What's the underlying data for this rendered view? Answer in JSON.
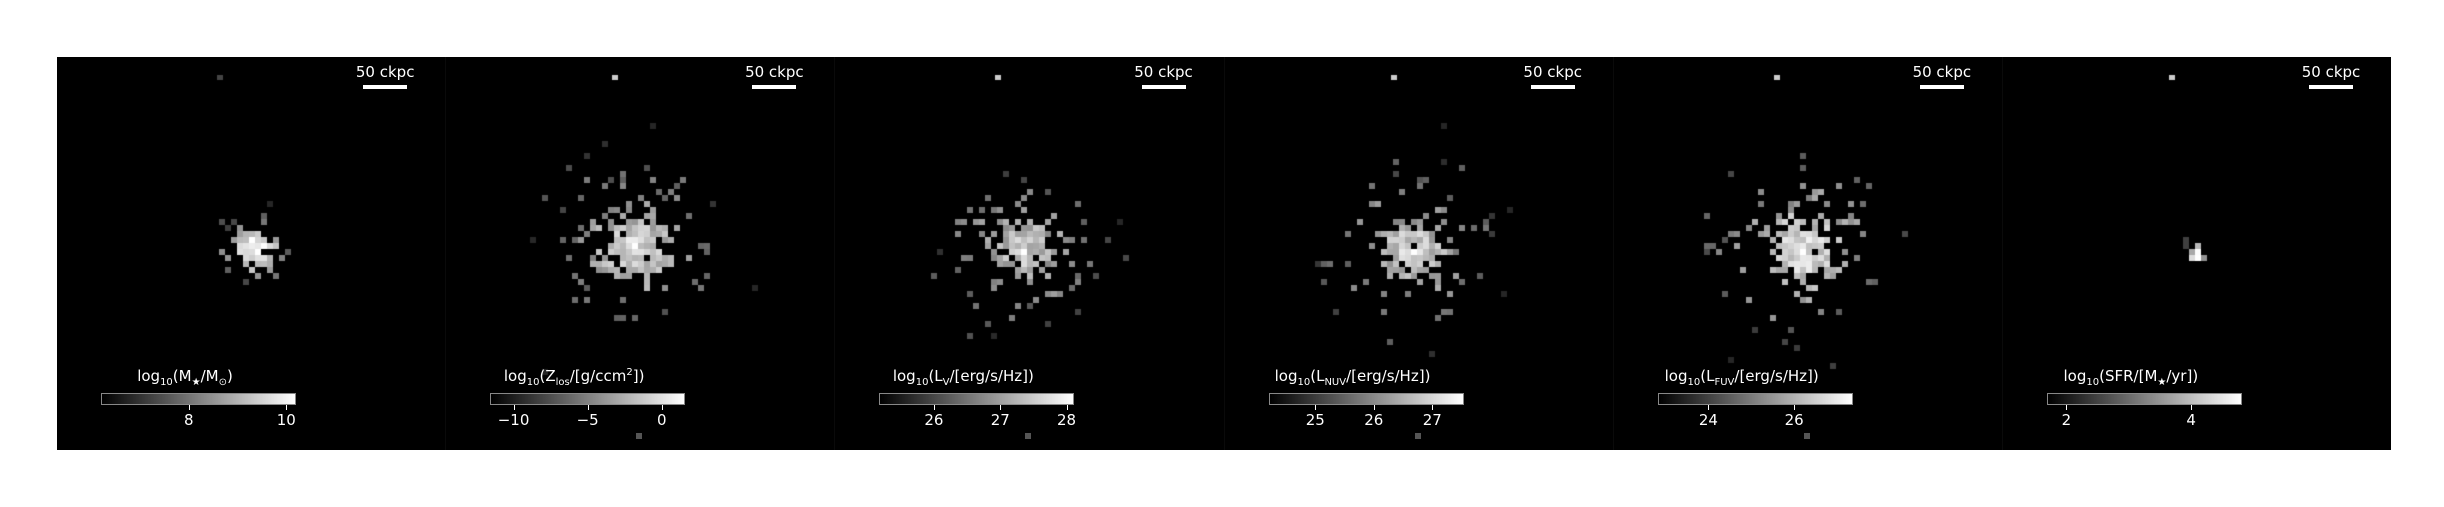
{
  "panels": [
    {
      "scalebar": "50 ckpc",
      "colorbar_label": {
        "pre": "log",
        "sub": "10",
        "mid": "(M",
        "sub2": "★",
        "post": "/M",
        "sub3": "⊙",
        "end": ")"
      },
      "ticks": [
        {
          "value": "8",
          "frac": 0.45
        },
        {
          "value": "10",
          "frac": 0.95
        }
      ]
    },
    {
      "scalebar": "50 ckpc",
      "colorbar_label": {
        "pre": "log",
        "sub": "10",
        "mid": "(Z",
        "sub2": "los",
        "post": "/[g/ccm",
        "sup": "2",
        "end": "])"
      },
      "ticks": [
        {
          "value": "−10",
          "frac": 0.12
        },
        {
          "value": "−5",
          "frac": 0.5
        },
        {
          "value": "0",
          "frac": 0.88
        }
      ]
    },
    {
      "scalebar": "50 ckpc",
      "colorbar_label": {
        "pre": "log",
        "sub": "10",
        "mid": "(L",
        "sub2": "V",
        "post": "/[erg/s/Hz])"
      },
      "ticks": [
        {
          "value": "26",
          "frac": 0.28
        },
        {
          "value": "27",
          "frac": 0.62
        },
        {
          "value": "28",
          "frac": 0.96
        }
      ]
    },
    {
      "scalebar": "50 ckpc",
      "colorbar_label": {
        "pre": "log",
        "sub": "10",
        "mid": "(L",
        "sub2": "NUV",
        "post": "/[erg/s/Hz])"
      },
      "ticks": [
        {
          "value": "25",
          "frac": 0.24
        },
        {
          "value": "26",
          "frac": 0.54
        },
        {
          "value": "27",
          "frac": 0.84
        }
      ]
    },
    {
      "scalebar": "50 ckpc",
      "colorbar_label": {
        "pre": "log",
        "sub": "10",
        "mid": "(L",
        "sub2": "FUV",
        "post": "/[erg/s/Hz])"
      },
      "ticks": [
        {
          "value": "24",
          "frac": 0.26
        },
        {
          "value": "26",
          "frac": 0.7
        }
      ]
    },
    {
      "scalebar": "50 ckpc",
      "colorbar_label": {
        "pre": "log",
        "sub": "10",
        "mid": "(SFR/[M",
        "sub2": "★",
        "post": "/yr])"
      },
      "ticks": [
        {
          "value": "2",
          "frac": 0.1
        },
        {
          "value": "4",
          "frac": 0.74
        }
      ]
    }
  ]
}
